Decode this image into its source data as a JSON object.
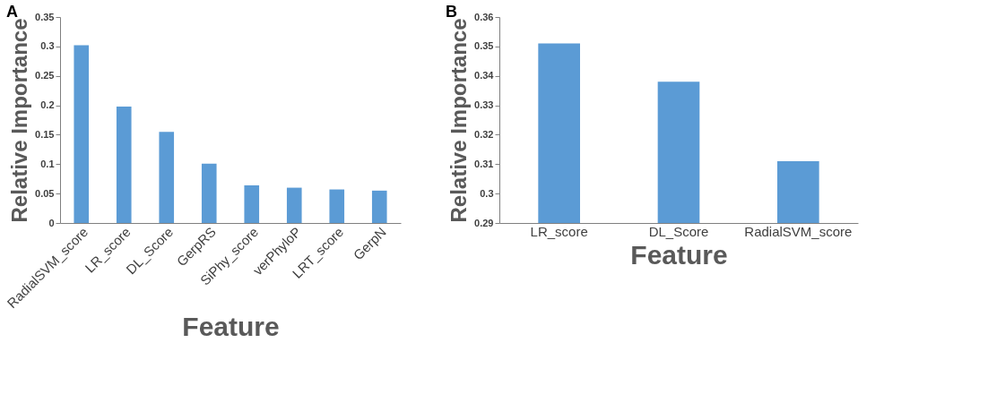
{
  "chart_data": [
    {
      "type": "bar",
      "title": "A",
      "xlabel": "Feature",
      "ylabel": "Relative Importance",
      "categories": [
        "RadialSVM_score",
        "LR_score",
        "DL_Score",
        "GerpRS",
        "SiPhy_score",
        "verPhyloP",
        "LRT_score",
        "GerpN"
      ],
      "series": [
        {
          "color": "#5b9bd5",
          "values": [
            0.302,
            0.198,
            0.155,
            0.101,
            0.064,
            0.06,
            0.057,
            0.055
          ]
        }
      ],
      "ylim": [
        0,
        0.35
      ],
      "yticks": [
        0,
        0.05,
        0.1,
        0.15,
        0.2,
        0.25,
        0.3,
        0.35
      ],
      "grid": false,
      "legend": false
    },
    {
      "type": "bar",
      "title": "B",
      "xlabel": "Feature",
      "ylabel": "Relative Importance",
      "categories": [
        "LR_score",
        "DL_Score",
        "RadialSVM_score"
      ],
      "series": [
        {
          "color": "#5b9bd5",
          "values": [
            0.351,
            0.338,
            0.311
          ]
        }
      ],
      "ylim": [
        0.29,
        0.36
      ],
      "yticks": [
        0.29,
        0.3,
        0.31,
        0.32,
        0.33,
        0.34,
        0.35,
        0.36
      ],
      "grid": false,
      "legend": false
    }
  ]
}
